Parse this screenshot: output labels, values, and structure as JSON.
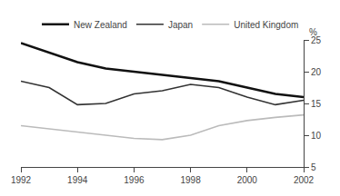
{
  "chart_data": {
    "type": "line",
    "ylabel": "%",
    "x": [
      1992,
      1993,
      1994,
      1995,
      1996,
      1997,
      1998,
      1999,
      2000,
      2001,
      2002
    ],
    "series": [
      {
        "name": "New Zealand",
        "color": "#111111",
        "values": [
          24.5,
          23.0,
          21.5,
          20.5,
          20.0,
          19.5,
          19.0,
          18.5,
          17.5,
          16.5,
          16.0
        ]
      },
      {
        "name": "Japan",
        "color": "#333333",
        "values": [
          18.5,
          17.5,
          14.8,
          15.0,
          16.5,
          17.0,
          18.0,
          17.5,
          16.0,
          14.8,
          15.5
        ]
      },
      {
        "name": "United Kingdom",
        "color": "#bbbbbb",
        "values": [
          11.5,
          11.0,
          10.5,
          10.0,
          9.5,
          9.3,
          10.0,
          11.5,
          12.3,
          12.8,
          13.2
        ]
      }
    ],
    "xlim": [
      1992,
      2002
    ],
    "xticks": [
      1992,
      1994,
      1996,
      1998,
      2000,
      2002
    ],
    "ylim": [
      5,
      25
    ],
    "yticks": [
      5,
      10,
      15,
      20,
      25
    ],
    "grid": false,
    "legend": "upper right"
  }
}
